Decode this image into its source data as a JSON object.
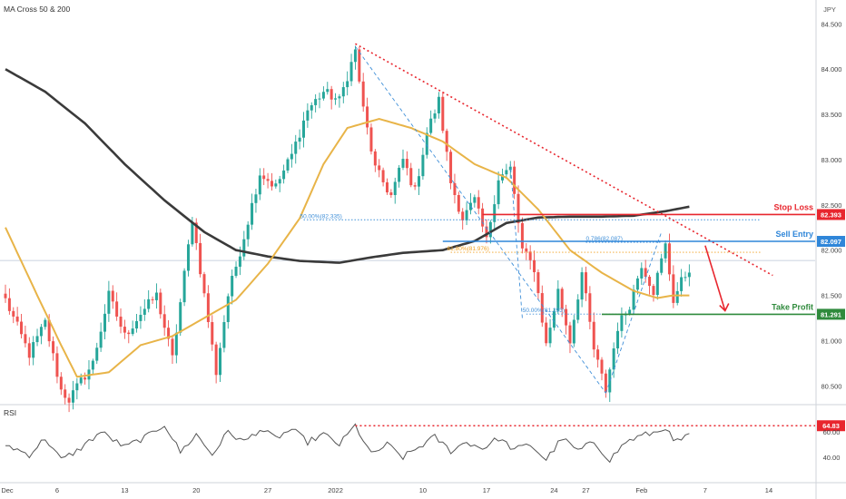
{
  "legend": {
    "main_title": "MA Cross 50 & 200",
    "rsi_title": "RSI",
    "currency": "JPY"
  },
  "colors": {
    "up": "#26a69a",
    "down": "#ef5350",
    "ma50": "#e8b448",
    "ma200": "#3a3a3a",
    "stop": "#e8262e",
    "entry": "#2f86d9",
    "target": "#2f8a3c",
    "rsi_line": "#555555",
    "trend_dotted": "#e8262e",
    "fib_blue": "#3f8fd8",
    "fib_orange": "#f0a020"
  },
  "chart_data": [
    {
      "type": "candlestick",
      "title": "MA Cross 50 & 200",
      "series": [
        {
          "name": "Price"
        },
        {
          "name": "MA 50"
        },
        {
          "name": "MA 200"
        }
      ],
      "ylim": [
        80.25,
        84.65
      ],
      "yticks": [
        84.5,
        84.0,
        83.5,
        83.0,
        82.5,
        82.0,
        81.5,
        81.0,
        80.5
      ],
      "ytick_labels": [
        "84.500",
        "84.000",
        "83.500",
        "83.000",
        "82.500",
        "82.000",
        "81.500",
        "81.000",
        "80.500"
      ],
      "xtick_labels": [
        "Dec",
        "6",
        "13",
        "20",
        "27",
        "2022",
        "10",
        "17",
        "24",
        "27",
        "Feb",
        "7",
        "14"
      ],
      "waypoints": [
        {
          "i": 0,
          "p": 81.45
        },
        {
          "i": 6,
          "p": 80.85
        },
        {
          "i": 10,
          "p": 81.2
        },
        {
          "i": 14,
          "p": 80.45
        },
        {
          "i": 16,
          "p": 80.35
        },
        {
          "i": 22,
          "p": 80.75
        },
        {
          "i": 26,
          "p": 81.5
        },
        {
          "i": 30,
          "p": 81.05
        },
        {
          "i": 34,
          "p": 81.3
        },
        {
          "i": 38,
          "p": 81.5
        },
        {
          "i": 42,
          "p": 80.8
        },
        {
          "i": 47,
          "p": 82.35
        },
        {
          "i": 50,
          "p": 81.5
        },
        {
          "i": 53,
          "p": 80.65
        },
        {
          "i": 56,
          "p": 81.5
        },
        {
          "i": 60,
          "p": 82.15
        },
        {
          "i": 64,
          "p": 82.85
        },
        {
          "i": 68,
          "p": 82.7
        },
        {
          "i": 72,
          "p": 83.05
        },
        {
          "i": 76,
          "p": 83.55
        },
        {
          "i": 80,
          "p": 83.75
        },
        {
          "i": 84,
          "p": 83.65
        },
        {
          "i": 88,
          "p": 84.2
        },
        {
          "i": 90,
          "p": 83.55
        },
        {
          "i": 93,
          "p": 82.9
        },
        {
          "i": 97,
          "p": 82.6
        },
        {
          "i": 100,
          "p": 83.0
        },
        {
          "i": 103,
          "p": 82.65
        },
        {
          "i": 106,
          "p": 83.3
        },
        {
          "i": 109,
          "p": 83.65
        },
        {
          "i": 112,
          "p": 82.75
        },
        {
          "i": 115,
          "p": 82.35
        },
        {
          "i": 118,
          "p": 82.55
        },
        {
          "i": 121,
          "p": 82.1
        },
        {
          "i": 124,
          "p": 82.8
        },
        {
          "i": 127,
          "p": 82.9
        },
        {
          "i": 130,
          "p": 82.0
        },
        {
          "i": 133,
          "p": 81.8
        },
        {
          "i": 136,
          "p": 80.95
        },
        {
          "i": 139,
          "p": 81.55
        },
        {
          "i": 142,
          "p": 81.0
        },
        {
          "i": 145,
          "p": 81.75
        },
        {
          "i": 148,
          "p": 80.9
        },
        {
          "i": 151,
          "p": 80.45
        },
        {
          "i": 154,
          "p": 81.15
        },
        {
          "i": 157,
          "p": 81.4
        },
        {
          "i": 160,
          "p": 81.85
        },
        {
          "i": 163,
          "p": 81.55
        },
        {
          "i": 166,
          "p": 82.05
        },
        {
          "i": 168,
          "p": 81.45
        },
        {
          "i": 170,
          "p": 81.65
        },
        {
          "i": 172,
          "p": 81.8
        }
      ],
      "ma50": [
        {
          "i": 0,
          "p": 82.25
        },
        {
          "i": 8,
          "p": 81.5
        },
        {
          "i": 14,
          "p": 80.95
        },
        {
          "i": 18,
          "p": 80.6
        },
        {
          "i": 26,
          "p": 80.65
        },
        {
          "i": 34,
          "p": 80.95
        },
        {
          "i": 42,
          "p": 81.05
        },
        {
          "i": 50,
          "p": 81.25
        },
        {
          "i": 58,
          "p": 81.45
        },
        {
          "i": 66,
          "p": 81.85
        },
        {
          "i": 74,
          "p": 82.35
        },
        {
          "i": 80,
          "p": 82.95
        },
        {
          "i": 86,
          "p": 83.35
        },
        {
          "i": 94,
          "p": 83.45
        },
        {
          "i": 102,
          "p": 83.35
        },
        {
          "i": 110,
          "p": 83.2
        },
        {
          "i": 118,
          "p": 82.95
        },
        {
          "i": 126,
          "p": 82.8
        },
        {
          "i": 134,
          "p": 82.45
        },
        {
          "i": 142,
          "p": 82.0
        },
        {
          "i": 150,
          "p": 81.75
        },
        {
          "i": 158,
          "p": 81.55
        },
        {
          "i": 164,
          "p": 81.47
        },
        {
          "i": 168,
          "p": 81.5
        },
        {
          "i": 172,
          "p": 81.5
        }
      ],
      "ma200": [
        {
          "i": 0,
          "p": 84.0
        },
        {
          "i": 10,
          "p": 83.75
        },
        {
          "i": 20,
          "p": 83.4
        },
        {
          "i": 30,
          "p": 82.95
        },
        {
          "i": 40,
          "p": 82.55
        },
        {
          "i": 50,
          "p": 82.2
        },
        {
          "i": 58,
          "p": 82.0
        },
        {
          "i": 66,
          "p": 81.93
        },
        {
          "i": 74,
          "p": 81.88
        },
        {
          "i": 84,
          "p": 81.86
        },
        {
          "i": 92,
          "p": 81.92
        },
        {
          "i": 100,
          "p": 81.97
        },
        {
          "i": 110,
          "p": 82.0
        },
        {
          "i": 118,
          "p": 82.1
        },
        {
          "i": 126,
          "p": 82.3
        },
        {
          "i": 134,
          "p": 82.36
        },
        {
          "i": 142,
          "p": 82.37
        },
        {
          "i": 150,
          "p": 82.37
        },
        {
          "i": 158,
          "p": 82.38
        },
        {
          "i": 166,
          "p": 82.43
        },
        {
          "i": 172,
          "p": 82.48
        }
      ],
      "trendlines": [
        {
          "name": "descending-resistance",
          "start": {
            "i": 88,
            "p": 84.28
          },
          "end": {
            "i": 193,
            "p": 81.72
          }
        }
      ],
      "levels": [
        {
          "name": "Stop Loss",
          "price": 82.393,
          "label": "82.393",
          "from_i": 120
        },
        {
          "name": "Sell Entry",
          "price": 82.097,
          "label": "82.097",
          "from_i": 110
        },
        {
          "name": "Take Profit",
          "price": 81.291,
          "label": "81.291",
          "from_i": 150
        }
      ],
      "fib_levels": [
        {
          "text": "50.00%(82.335)",
          "price": 82.335,
          "from_i": 75,
          "to_i": 190,
          "color": "#3f8fd8"
        },
        {
          "text": "61.80%(81.976)",
          "price": 81.976,
          "from_i": 112,
          "to_i": 190,
          "color": "#f0a020"
        },
        {
          "text": "0.786(82.087)",
          "price": 82.087,
          "from_i": 146,
          "to_i": 165,
          "color": "#3f8fd8"
        },
        {
          "text": "50.00%(81.293)",
          "price": 81.293,
          "from_i": 131,
          "to_i": 160,
          "color": "#3f8fd8"
        }
      ],
      "annotations": [
        {
          "text": "Stop Loss",
          "price": 82.393
        },
        {
          "text": "Sell Entry",
          "price": 82.097
        },
        {
          "text": "Take Profit",
          "price": 81.291
        }
      ],
      "current_price_line": 81.885
    },
    {
      "type": "line",
      "title": "RSI",
      "series": [
        {
          "name": "RSI"
        }
      ],
      "ylim": [
        30,
        75
      ],
      "yticks": [
        60.0,
        40.0
      ],
      "ytick_labels": [
        "60.00",
        "40.00"
      ],
      "level": {
        "value": 64.83,
        "label": "64.83"
      },
      "waypoints": [
        {
          "i": 0,
          "p": 50
        },
        {
          "i": 6,
          "p": 42
        },
        {
          "i": 10,
          "p": 55
        },
        {
          "i": 14,
          "p": 38
        },
        {
          "i": 18,
          "p": 45
        },
        {
          "i": 24,
          "p": 60
        },
        {
          "i": 30,
          "p": 48
        },
        {
          "i": 36,
          "p": 57
        },
        {
          "i": 40,
          "p": 66
        },
        {
          "i": 44,
          "p": 44
        },
        {
          "i": 48,
          "p": 58
        },
        {
          "i": 52,
          "p": 42
        },
        {
          "i": 56,
          "p": 60
        },
        {
          "i": 60,
          "p": 52
        },
        {
          "i": 64,
          "p": 62
        },
        {
          "i": 68,
          "p": 55
        },
        {
          "i": 72,
          "p": 62
        },
        {
          "i": 76,
          "p": 52
        },
        {
          "i": 80,
          "p": 58
        },
        {
          "i": 84,
          "p": 50
        },
        {
          "i": 88,
          "p": 65
        },
        {
          "i": 92,
          "p": 42
        },
        {
          "i": 96,
          "p": 50
        },
        {
          "i": 100,
          "p": 40
        },
        {
          "i": 104,
          "p": 48
        },
        {
          "i": 108,
          "p": 56
        },
        {
          "i": 112,
          "p": 45
        },
        {
          "i": 116,
          "p": 52
        },
        {
          "i": 120,
          "p": 47
        },
        {
          "i": 124,
          "p": 55
        },
        {
          "i": 128,
          "p": 46
        },
        {
          "i": 132,
          "p": 50
        },
        {
          "i": 136,
          "p": 38
        },
        {
          "i": 140,
          "p": 55
        },
        {
          "i": 144,
          "p": 45
        },
        {
          "i": 148,
          "p": 52
        },
        {
          "i": 152,
          "p": 38
        },
        {
          "i": 156,
          "p": 52
        },
        {
          "i": 160,
          "p": 57
        },
        {
          "i": 164,
          "p": 60
        },
        {
          "i": 166,
          "p": 64
        },
        {
          "i": 168,
          "p": 52
        },
        {
          "i": 170,
          "p": 54
        },
        {
          "i": 172,
          "p": 57
        }
      ]
    }
  ]
}
